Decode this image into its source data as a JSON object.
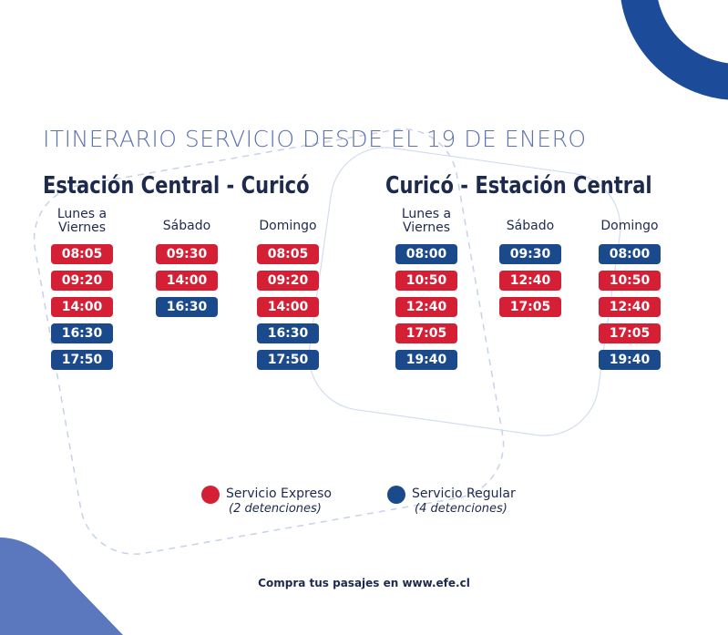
{
  "title": "ITINERARIO SERVICIO DESDE EL 19 DE ENERO",
  "routes": [
    {
      "name": "Estación Central - Curicó",
      "columns": [
        {
          "day": "Lunes a Viernes",
          "times": [
            {
              "time": "08:05",
              "color": "#d51f35"
            },
            {
              "time": "09:20",
              "color": "#d51f35"
            },
            {
              "time": "14:00",
              "color": "#d51f35"
            },
            {
              "time": "16:30",
              "color": "#1b4a8c"
            },
            {
              "time": "17:50",
              "color": "#1b4a8c"
            }
          ]
        },
        {
          "day": "Sábado",
          "times": [
            {
              "time": "09:30",
              "color": "#d51f35"
            },
            {
              "time": "14:00",
              "color": "#d51f35"
            },
            {
              "time": "16:30",
              "color": "#1b4a8c"
            }
          ]
        },
        {
          "day": "Domingo",
          "times": [
            {
              "time": "08:05",
              "color": "#d51f35"
            },
            {
              "time": "09:20",
              "color": "#d51f35"
            },
            {
              "time": "14:00",
              "color": "#d51f35"
            },
            {
              "time": "16:30",
              "color": "#1b4a8c"
            },
            {
              "time": "17:50",
              "color": "#1b4a8c"
            }
          ]
        }
      ]
    },
    {
      "name": "Curicó - Estación Central",
      "columns": [
        {
          "day": "Lunes a Viernes",
          "times": [
            {
              "time": "08:00",
              "color": "#1b4a8c"
            },
            {
              "time": "10:50",
              "color": "#d51f35"
            },
            {
              "time": "12:40",
              "color": "#d51f35"
            },
            {
              "time": "17:05",
              "color": "#d51f35"
            },
            {
              "time": "19:40",
              "color": "#1b4a8c"
            }
          ]
        },
        {
          "day": "Sábado",
          "times": [
            {
              "time": "09:30",
              "color": "#1b4a8c"
            },
            {
              "time": "12:40",
              "color": "#d51f35"
            },
            {
              "time": "17:05",
              "color": "#d51f35"
            }
          ]
        },
        {
          "day": "Domingo",
          "times": [
            {
              "time": "08:00",
              "color": "#1b4a8c"
            },
            {
              "time": "10:50",
              "color": "#d51f35"
            },
            {
              "time": "12:40",
              "color": "#d51f35"
            },
            {
              "time": "17:05",
              "color": "#d51f35"
            },
            {
              "time": "19:40",
              "color": "#1b4a8c"
            }
          ]
        }
      ]
    }
  ],
  "legend": [
    {
      "label": "Servicio Expreso",
      "note": "(2 detenciones)",
      "color": "#d51f35"
    },
    {
      "label": "Servicio Regular",
      "note": "(4 detenciones)",
      "color": "#1b4a8c"
    }
  ],
  "footer": "Compra tus pasajes en www.efe.cl"
}
